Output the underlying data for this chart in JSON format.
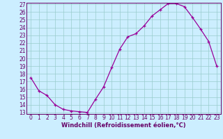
{
  "x": [
    0,
    1,
    2,
    3,
    4,
    5,
    6,
    7,
    8,
    9,
    10,
    11,
    12,
    13,
    14,
    15,
    16,
    17,
    18,
    19,
    20,
    21,
    22,
    23
  ],
  "y": [
    17.5,
    15.8,
    15.2,
    14.0,
    13.4,
    13.2,
    13.1,
    13.0,
    14.7,
    16.3,
    18.8,
    21.2,
    22.8,
    23.2,
    24.2,
    25.5,
    26.3,
    27.1,
    27.1,
    26.7,
    25.3,
    23.8,
    22.2,
    19.0
  ],
  "xlabel": "Windchill (Refroidissement éolien,°C)",
  "ylim_min": 13,
  "ylim_max": 27,
  "xlim_min": 0,
  "xlim_max": 23,
  "yticks": [
    13,
    14,
    15,
    16,
    17,
    18,
    19,
    20,
    21,
    22,
    23,
    24,
    25,
    26,
    27
  ],
  "xticks": [
    0,
    1,
    2,
    3,
    4,
    5,
    6,
    7,
    8,
    9,
    10,
    11,
    12,
    13,
    14,
    15,
    16,
    17,
    18,
    19,
    20,
    21,
    22,
    23
  ],
  "line_color": "#990099",
  "marker": "+",
  "bg_color": "#cceeff",
  "grid_color": "#99cccc",
  "axis_color": "#660066",
  "tick_fontsize": 5.5,
  "xlabel_fontsize": 6.0,
  "marker_size": 3.5,
  "linewidth": 0.9
}
